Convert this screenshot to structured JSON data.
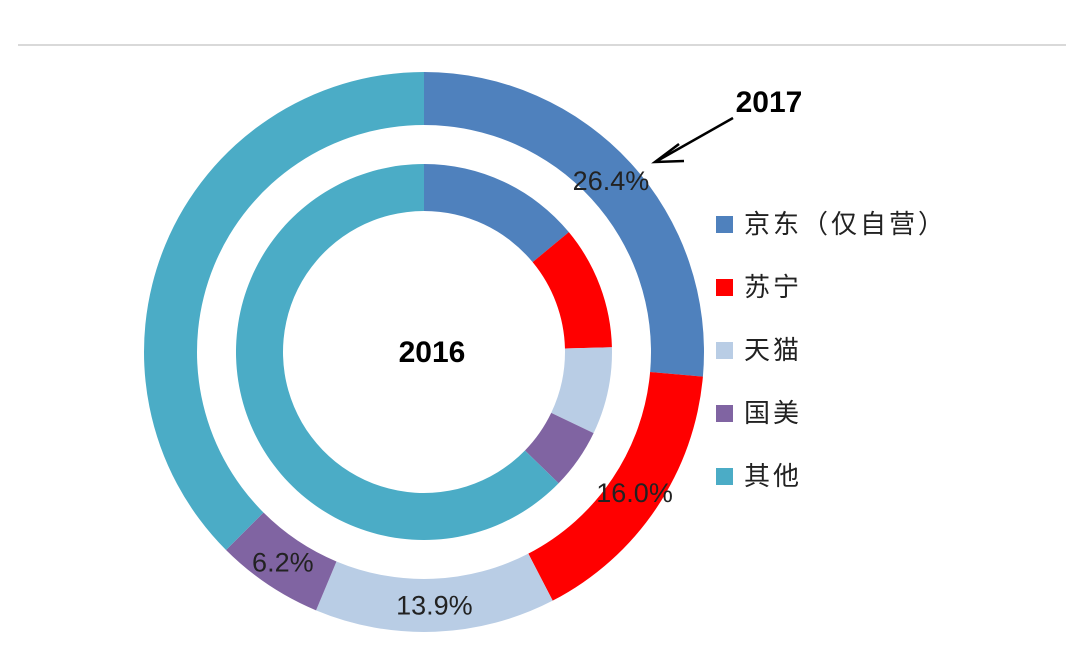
{
  "chart_data": {
    "type": "donut",
    "title": "",
    "categories": [
      "京东（仅自营）",
      "苏宁",
      "天猫",
      "国美",
      "其他"
    ],
    "colors": [
      "#4f81bd",
      "#ff0000",
      "#b9cde5",
      "#8064a2",
      "#4bacc6"
    ],
    "series": [
      {
        "name": "2016",
        "ring": "inner",
        "values": [
          14.0,
          10.6,
          7.5,
          5.2,
          62.7
        ]
      },
      {
        "name": "2017",
        "ring": "outer",
        "values": [
          26.4,
          16.0,
          13.9,
          6.2,
          37.5
        ]
      }
    ],
    "data_labels": {
      "2017": [
        "26.4%",
        "16.0%",
        "13.9%",
        "6.2%",
        ""
      ]
    },
    "legend_position": "right"
  }
}
